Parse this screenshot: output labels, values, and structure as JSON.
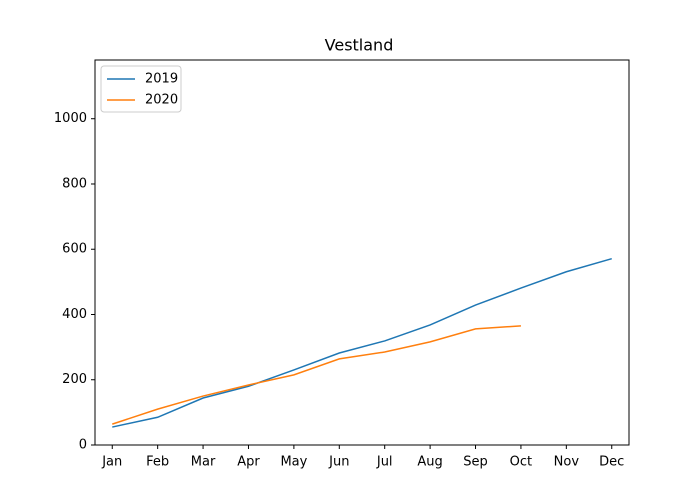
{
  "chart_data": {
    "type": "line",
    "title": "Vestland",
    "categories": [
      "Jan",
      "Feb",
      "Mar",
      "Apr",
      "May",
      "Jun",
      "Jul",
      "Aug",
      "Sep",
      "Oct",
      "Nov",
      "Dec"
    ],
    "series": [
      {
        "name": "2019",
        "color": "#1f77b4",
        "values": [
          55,
          85,
          144,
          180,
          230,
          282,
          319,
          368,
          429,
          481,
          531,
          571
        ]
      },
      {
        "name": "2020",
        "color": "#ff7f0e",
        "values": [
          64,
          110,
          150,
          184,
          215,
          264,
          285,
          316,
          356,
          365,
          null,
          null
        ]
      }
    ],
    "ylim": [
      0,
      1180
    ],
    "yticks": [
      0,
      200,
      400,
      600,
      800,
      1000
    ],
    "grid": false,
    "legend": "upper left"
  }
}
